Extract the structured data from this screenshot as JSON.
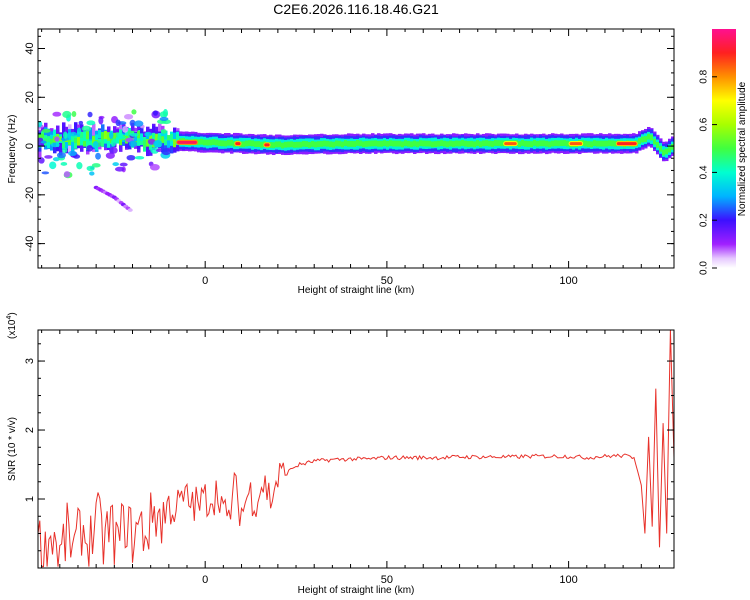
{
  "title": "C2E6.2026.116.18.46.G21",
  "spectrogram": {
    "xlabel": "Height of straight line (km)",
    "ylabel": "Frequency (Hz)",
    "xlim": [
      -46,
      129
    ],
    "ylim": [
      -50,
      48
    ],
    "xticks": [
      "0",
      "50",
      "100"
    ],
    "xtick_values": [
      0,
      50,
      100
    ],
    "yticks": [
      "-40",
      "-20",
      "0",
      "20",
      "40"
    ],
    "ytick_values": [
      -40,
      -20,
      0,
      20,
      40
    ]
  },
  "colorbar": {
    "label": "Normalized spectral amplitude",
    "ticks": [
      "0.0",
      "0.2",
      "0.4",
      "0.6",
      "0.8"
    ],
    "tick_values": [
      0,
      0.2,
      0.4,
      0.6,
      0.8
    ],
    "range": [
      0,
      1
    ]
  },
  "snr": {
    "xlabel": "Height of straight line (km)",
    "ylabel": "SNR (10 * v/v)",
    "scale_label": "(x10",
    "scale_exp": "4",
    "scale_close": ")",
    "xlim": [
      -46,
      129
    ],
    "ylim": [
      0,
      3.45
    ],
    "xticks": [
      "0",
      "50",
      "100"
    ],
    "xtick_values": [
      0,
      50,
      100
    ],
    "yticks": [
      "1",
      "2",
      "3"
    ],
    "ytick_values": [
      1,
      2,
      3
    ],
    "line_color": "#e8312a"
  },
  "chart_data": [
    {
      "type": "heatmap",
      "title": "C2E6.2026.116.18.46.G21",
      "xlabel": "Height of straight line (km)",
      "ylabel": "Frequency (Hz)",
      "xlim": [
        -46,
        129
      ],
      "ylim": [
        -50,
        48
      ],
      "colorbar_label": "Normalized spectral amplitude",
      "colorbar_range": [
        0,
        1
      ],
      "band_center_hz": [
        {
          "x": -46,
          "f": 3
        },
        {
          "x": -40,
          "f": 2.5
        },
        {
          "x": -30,
          "f": 3
        },
        {
          "x": -20,
          "f": 3
        },
        {
          "x": -10,
          "f": 2
        },
        {
          "x": 0,
          "f": 1.5
        },
        {
          "x": 10,
          "f": 1
        },
        {
          "x": 20,
          "f": 0.5
        },
        {
          "x": 40,
          "f": 1
        },
        {
          "x": 60,
          "f": 1
        },
        {
          "x": 80,
          "f": 1
        },
        {
          "x": 100,
          "f": 1
        },
        {
          "x": 118,
          "f": 1
        },
        {
          "x": 122,
          "f": 4
        },
        {
          "x": 126,
          "f": -3
        },
        {
          "x": 129,
          "f": 1
        }
      ],
      "band_halfwidth_hz": 4,
      "peak_amplitude_segments": [
        {
          "x_start": -8,
          "x_end": -2,
          "f": 1.5,
          "amp": 0.95
        },
        {
          "x_start": 8,
          "x_end": 10,
          "f": 1,
          "amp": 0.9
        },
        {
          "x_start": 16,
          "x_end": 18,
          "f": 0.5,
          "amp": 0.9
        },
        {
          "x_start": 82,
          "x_end": 86,
          "f": 1,
          "amp": 0.85
        },
        {
          "x_start": 100,
          "x_end": 104,
          "f": 1,
          "amp": 0.85
        },
        {
          "x_start": 113,
          "x_end": 119,
          "f": 1,
          "amp": 0.9
        }
      ],
      "scattered_low_amplitude_region": {
        "x_range": [
          -46,
          -10
        ],
        "f_range": [
          -12,
          14
        ]
      },
      "diagonal_streak": [
        {
          "x": -30,
          "f": -17
        },
        {
          "x": -25,
          "f": -21
        },
        {
          "x": -20,
          "f": -27
        }
      ]
    },
    {
      "type": "line",
      "xlabel": "Height of straight line (km)",
      "ylabel": "SNR (10 * v/v)",
      "y_multiplier": "x10^4",
      "xlim": [
        -46,
        129
      ],
      "ylim": [
        0,
        3.45
      ],
      "series": [
        {
          "x": [
            -46,
            -44,
            -42,
            -40,
            -38,
            -36,
            -34,
            -32,
            -30,
            -28,
            -26,
            -24,
            -22,
            -20,
            -18,
            -16,
            -14,
            -12,
            -10,
            -8,
            -6,
            -4,
            -2,
            0,
            2,
            4,
            6,
            8,
            10,
            12,
            14,
            16,
            18,
            20,
            22,
            24,
            26,
            28,
            30,
            35,
            40,
            45,
            50,
            55,
            60,
            65,
            70,
            75,
            80,
            85,
            90,
            95,
            100,
            105,
            110,
            115,
            118,
            120,
            121,
            122,
            123,
            124,
            125,
            126,
            127,
            128,
            129
          ],
          "y": [
            0.4,
            0.2,
            0.55,
            0.15,
            0.5,
            0.25,
            0.6,
            0.3,
            0.75,
            0.4,
            0.6,
            0.35,
            0.7,
            0.45,
            0.6,
            0.5,
            0.85,
            0.7,
            0.9,
            0.85,
            1.0,
            0.95,
            0.9,
            1.0,
            1.05,
            1.1,
            0.6,
            1.15,
            0.8,
            1.1,
            1.0,
            1.25,
            1.0,
            1.3,
            1.35,
            1.45,
            1.5,
            1.52,
            1.55,
            1.57,
            1.58,
            1.58,
            1.6,
            1.6,
            1.6,
            1.6,
            1.61,
            1.61,
            1.61,
            1.61,
            1.62,
            1.62,
            1.62,
            1.6,
            1.62,
            1.63,
            1.6,
            1.2,
            0.5,
            1.9,
            0.6,
            2.6,
            0.3,
            2.1,
            0.5,
            3.45,
            1.6
          ]
        }
      ]
    }
  ]
}
